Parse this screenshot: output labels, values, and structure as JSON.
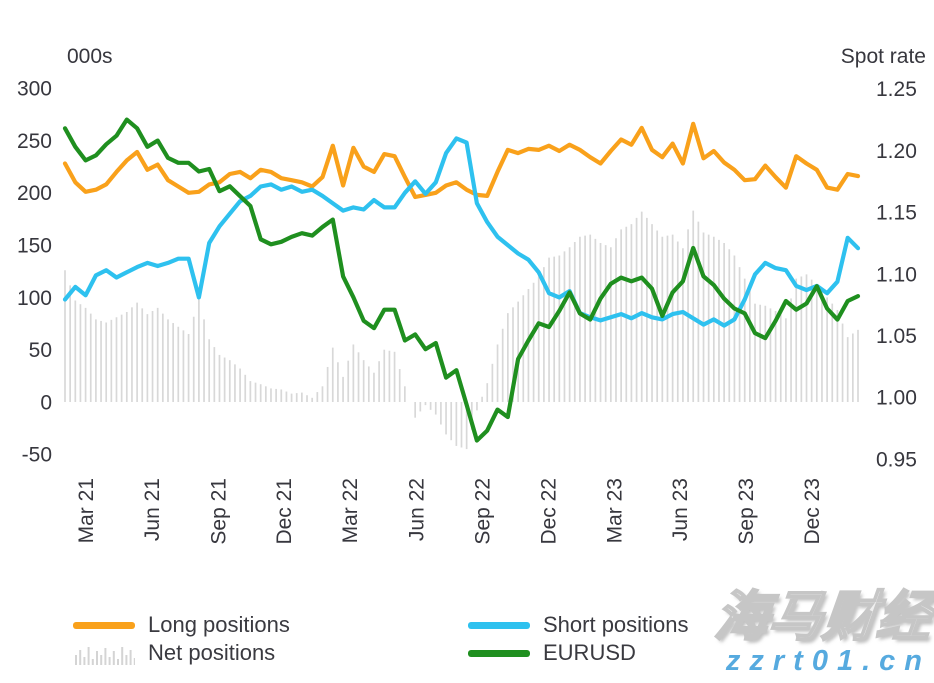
{
  "chart_data": {
    "type": "combo",
    "title": "",
    "n_points": 78,
    "left_axis": {
      "title": "000s",
      "ticks": [
        300,
        250,
        200,
        150,
        100,
        50,
        0,
        -50
      ]
    },
    "right_axis": {
      "title": "Spot rate",
      "ticks": [
        1.25,
        1.2,
        1.15,
        1.1,
        1.05,
        1.0,
        0.95
      ],
      "tick_labels": [
        "1.25",
        "1.20",
        "1.15",
        "1.10",
        "1.05",
        "1.00",
        "0.95"
      ]
    },
    "x_ticks": {
      "labels": [
        "Mar 21",
        "Jun 21",
        "Sep 21",
        "Dec 21",
        "Mar 22",
        "Jun 22",
        "Sep 22",
        "Dec 22",
        "Mar 23",
        "Jun 23",
        "Sep 23",
        "Dec 23"
      ],
      "positions": [
        2,
        8.4,
        14.85,
        21.25,
        27.65,
        34.1,
        40.5,
        46.9,
        53.3,
        59.7,
        66.1,
        72.5
      ]
    },
    "series": [
      {
        "name": "Long positions",
        "type": "line",
        "axis": "left",
        "color": "#f9a11b",
        "values": [
          228,
          210,
          201,
          203,
          208,
          220,
          231,
          239,
          222,
          227,
          212,
          206,
          200,
          201,
          208,
          210,
          218,
          220,
          214,
          222,
          220,
          214,
          212,
          210,
          206,
          215,
          245,
          207,
          243,
          225,
          220,
          237,
          235,
          215,
          196,
          198,
          200,
          207,
          210,
          203,
          198,
          197,
          220,
          241,
          238,
          242,
          241,
          245,
          240,
          246,
          241,
          234,
          228,
          240,
          251,
          246,
          262,
          241,
          234,
          247,
          228,
          266,
          233,
          240,
          229,
          222,
          212,
          213,
          226,
          215,
          205,
          235,
          228,
          222,
          205,
          203,
          218,
          216
        ]
      },
      {
        "name": "Short positions",
        "type": "line",
        "axis": "left",
        "color": "#2ec1ef",
        "values": [
          98,
          110,
          102,
          121,
          126,
          119,
          124,
          129,
          133,
          130,
          133,
          137,
          137,
          100,
          152,
          168,
          180,
          192,
          197,
          206,
          208,
          203,
          206,
          201,
          203,
          197,
          190,
          183,
          186,
          184,
          193,
          186,
          186,
          200,
          211,
          199,
          210,
          238,
          252,
          248,
          190,
          172,
          158,
          150,
          142,
          136,
          124,
          104,
          100,
          106,
          85,
          81,
          78,
          81,
          84,
          80,
          85,
          81,
          79,
          84,
          86,
          80,
          74,
          79,
          73,
          79,
          98,
          122,
          133,
          128,
          126,
          111,
          107,
          111,
          104,
          115,
          157,
          147
        ]
      },
      {
        "name": "Net positions",
        "type": "bar",
        "axis": "left",
        "color": "#d8d8d8",
        "values": [
          126,
          97,
          90,
          79,
          76,
          81,
          86,
          95,
          84,
          90,
          79,
          72,
          65,
          98,
          60,
          45,
          40,
          32,
          20,
          17,
          13,
          12,
          8,
          9,
          4,
          15,
          52,
          24,
          55,
          40,
          28,
          50,
          48,
          15,
          -15,
          -3,
          -12,
          -31,
          -42,
          -45,
          -8,
          18,
          55,
          85,
          96,
          108,
          120,
          138,
          140,
          148,
          158,
          160,
          152,
          148,
          165,
          170,
          182,
          170,
          158,
          160,
          147,
          183,
          162,
          158,
          152,
          140,
          118,
          94,
          92,
          87,
          80,
          118,
          122,
          112,
          100,
          88,
          62,
          69
        ]
      },
      {
        "name": "EURUSD",
        "type": "line",
        "axis": "right",
        "color": "#1f8f1f",
        "values": [
          1.218,
          1.203,
          1.192,
          1.196,
          1.205,
          1.212,
          1.225,
          1.218,
          1.203,
          1.208,
          1.194,
          1.19,
          1.19,
          1.183,
          1.185,
          1.167,
          1.171,
          1.163,
          1.155,
          1.128,
          1.124,
          1.126,
          1.13,
          1.133,
          1.131,
          1.138,
          1.144,
          1.098,
          1.081,
          1.062,
          1.056,
          1.071,
          1.071,
          1.046,
          1.051,
          1.039,
          1.044,
          1.016,
          1.022,
          0.994,
          0.965,
          0.973,
          0.99,
          0.984,
          1.031,
          1.046,
          1.06,
          1.057,
          1.07,
          1.085,
          1.068,
          1.063,
          1.08,
          1.092,
          1.097,
          1.094,
          1.097,
          1.088,
          1.066,
          1.085,
          1.094,
          1.121,
          1.098,
          1.091,
          1.08,
          1.072,
          1.068,
          1.052,
          1.048,
          1.062,
          1.078,
          1.071,
          1.076,
          1.09,
          1.072,
          1.063,
          1.078,
          1.082
        ]
      }
    ],
    "legend_position": "bottom"
  },
  "legend": {
    "items": [
      {
        "label": "Long positions",
        "swatch": "line",
        "color": "#f9a11b"
      },
      {
        "label": "Short positions",
        "swatch": "line",
        "color": "#2ec1ef"
      },
      {
        "label": "Net positions",
        "swatch": "bars",
        "color": "#d4d4d4"
      },
      {
        "label": "EURUSD",
        "swatch": "line",
        "color": "#1f8f1f"
      }
    ],
    "bars_swatch_heights": [
      10,
      15,
      8,
      18,
      6,
      14,
      10,
      17,
      8,
      14,
      6,
      18,
      10,
      15,
      7
    ]
  },
  "watermark": {
    "line1": "海马财经",
    "line2": "zzrt01.cn",
    "url_color": "#56aadf"
  }
}
